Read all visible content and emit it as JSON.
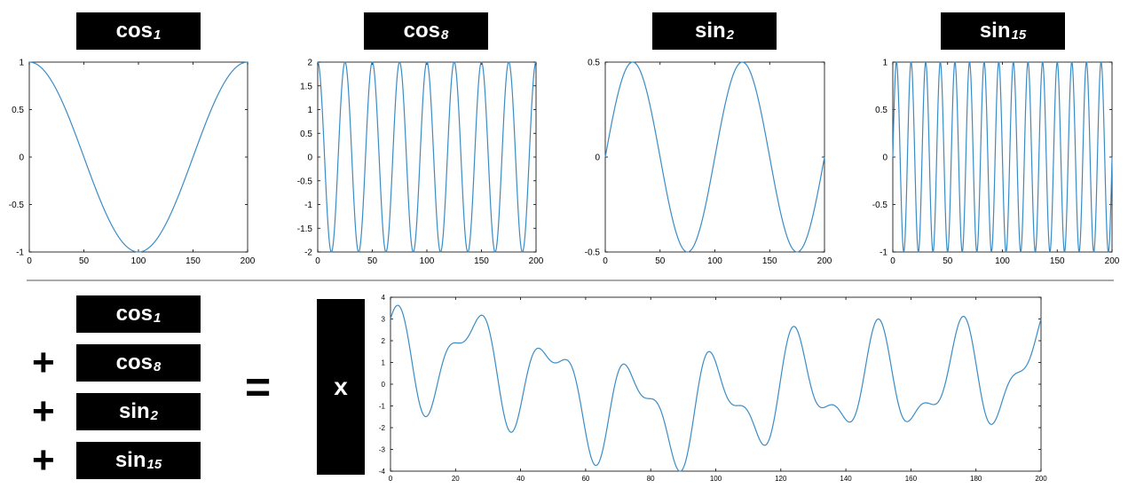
{
  "top_labels": [
    {
      "base": "cos",
      "sub": "1"
    },
    {
      "base": "cos",
      "sub": "8"
    },
    {
      "base": "sin",
      "sub": "2"
    },
    {
      "base": "sin",
      "sub": "15"
    }
  ],
  "sum_labels": [
    {
      "base": "cos",
      "sub": "1"
    },
    {
      "base": "cos",
      "sub": "8"
    },
    {
      "base": "sin",
      "sub": "2"
    },
    {
      "base": "sin",
      "sub": "15"
    }
  ],
  "plus_symbol": "+",
  "equals_symbol": "=",
  "result_label": "x",
  "colors": {
    "line": "#3a8cc6",
    "axis": "#000000",
    "label_bg": "#000000",
    "label_fg": "#ffffff"
  },
  "chart_data": [
    {
      "type": "line",
      "title": "cos1",
      "func": "cos",
      "amplitude": 1,
      "cycles": 1,
      "x": [
        0,
        200
      ],
      "xlim": [
        0,
        200
      ],
      "ylim": [
        -1,
        1
      ],
      "xticks": [
        0,
        50,
        100,
        150,
        200
      ],
      "yticks": [
        -1,
        -0.5,
        0,
        0.5,
        1
      ],
      "xtick_labels": [
        "0",
        "50",
        "100",
        "150",
        "200"
      ],
      "ytick_labels": [
        "-1",
        "-0.5",
        "0",
        "0.5",
        "1"
      ]
    },
    {
      "type": "line",
      "title": "cos8",
      "func": "cos",
      "amplitude": 2,
      "cycles": 8,
      "x": [
        0,
        200
      ],
      "xlim": [
        0,
        200
      ],
      "ylim": [
        -2,
        2
      ],
      "xticks": [
        0,
        50,
        100,
        150,
        200
      ],
      "yticks": [
        -2,
        -1.5,
        -1,
        -0.5,
        0,
        0.5,
        1,
        1.5,
        2
      ],
      "xtick_labels": [
        "0",
        "50",
        "100",
        "150",
        "200"
      ],
      "ytick_labels": [
        "-2",
        "-1.5",
        "-1",
        "-0.5",
        "0",
        "0.5",
        "1",
        "1.5",
        "2"
      ]
    },
    {
      "type": "line",
      "title": "sin2",
      "func": "sin",
      "amplitude": 0.5,
      "cycles": 2,
      "x": [
        0,
        200
      ],
      "xlim": [
        0,
        200
      ],
      "ylim": [
        -0.5,
        0.5
      ],
      "xticks": [
        0,
        50,
        100,
        150,
        200
      ],
      "yticks": [
        -0.5,
        0,
        0.5
      ],
      "xtick_labels": [
        "0",
        "50",
        "100",
        "150",
        "200"
      ],
      "ytick_labels": [
        "-0.5",
        "0",
        "0.5"
      ]
    },
    {
      "type": "line",
      "title": "sin15",
      "func": "sin",
      "amplitude": 1,
      "cycles": 15,
      "x": [
        0,
        200
      ],
      "xlim": [
        0,
        200
      ],
      "ylim": [
        -1,
        1
      ],
      "xticks": [
        0,
        50,
        100,
        150,
        200
      ],
      "yticks": [
        -1,
        -0.5,
        0,
        0.5,
        1
      ],
      "xtick_labels": [
        "0",
        "50",
        "100",
        "150",
        "200"
      ],
      "ytick_labels": [
        "-1",
        "-0.5",
        "0",
        "0.5",
        "1"
      ]
    },
    {
      "type": "line",
      "title": "x = cos1 + cos8 + sin2 + sin15",
      "func": "sum",
      "x": [
        0,
        200
      ],
      "xlim": [
        0,
        200
      ],
      "ylim": [
        -4,
        4
      ],
      "xticks": [
        0,
        20,
        40,
        60,
        80,
        100,
        120,
        140,
        160,
        180,
        200
      ],
      "yticks": [
        -4,
        -3,
        -2,
        -1,
        0,
        1,
        2,
        3,
        4
      ],
      "xtick_labels": [
        "0",
        "20",
        "40",
        "60",
        "80",
        "100",
        "120",
        "140",
        "160",
        "180",
        "200"
      ],
      "ytick_labels": [
        "-4",
        "-3",
        "-2",
        "-1",
        "0",
        "1",
        "2",
        "3",
        "4"
      ]
    }
  ]
}
